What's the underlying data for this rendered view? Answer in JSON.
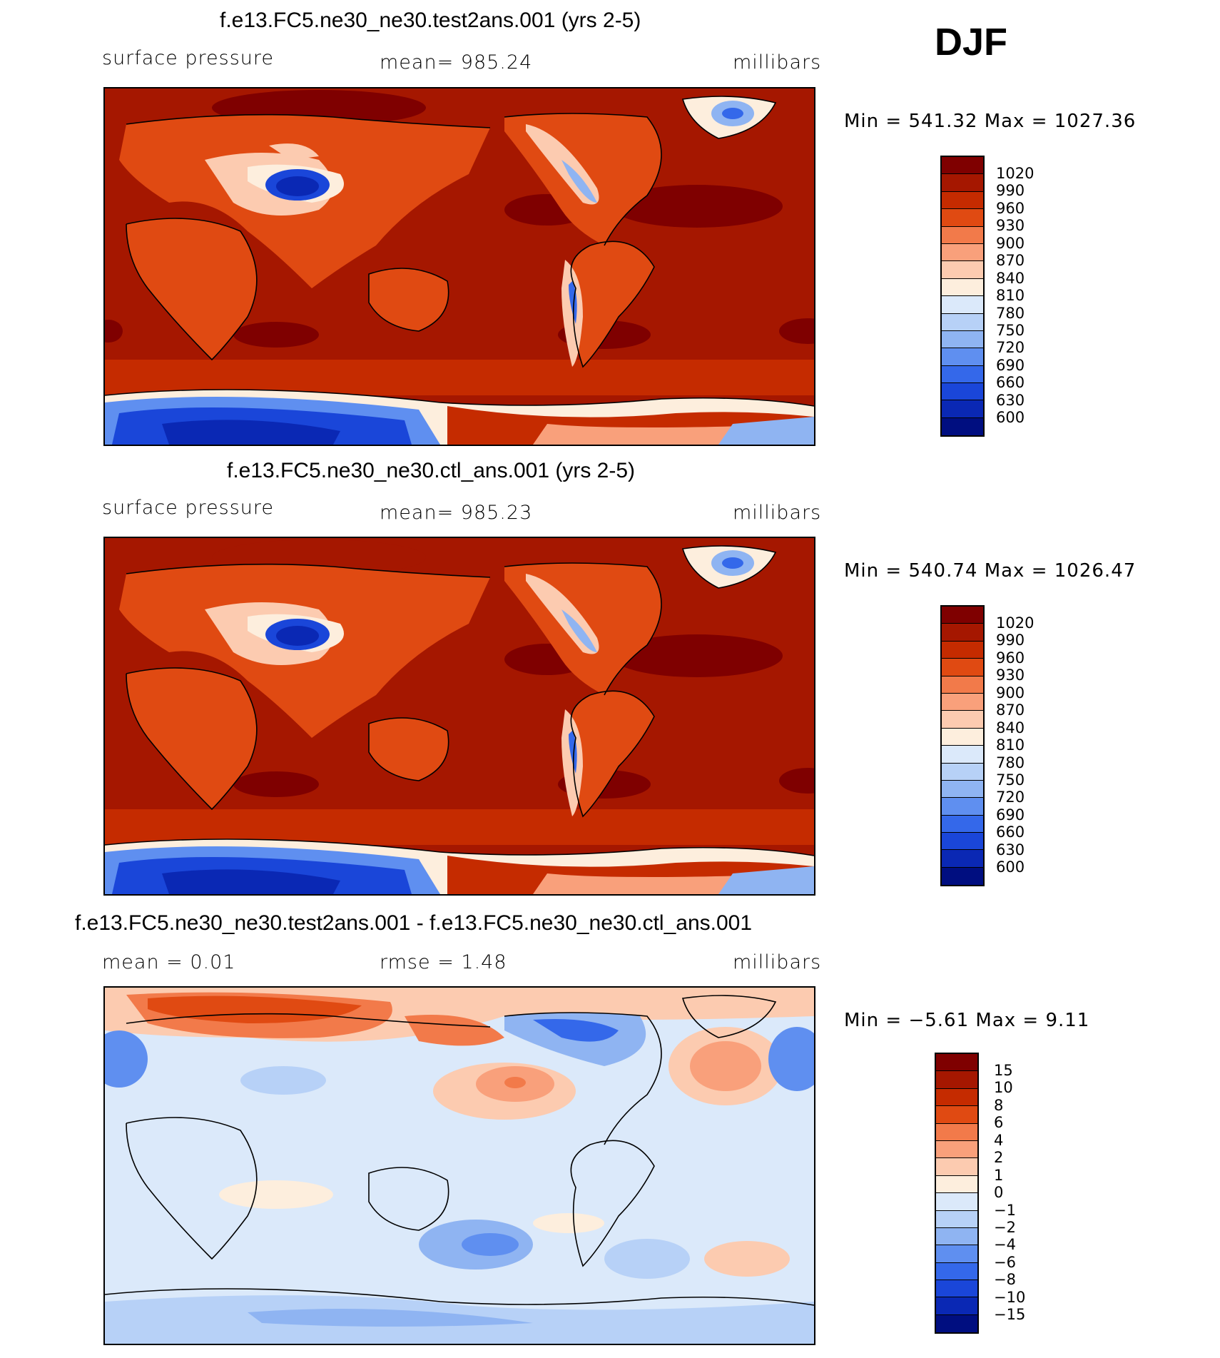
{
  "season": "DJF",
  "chart_data": [
    {
      "type": "heatmap",
      "title": "f.e13.FC5.ne30_ne30.test2ans.001 (yrs 2-5)",
      "variable": "surface pressure",
      "mean_label": "mean=  985.24",
      "units": "millibars",
      "minmax": "Min  =  541.32  Max  =  1027.36",
      "min": 541.32,
      "max": 1027.36,
      "mean": 985.24,
      "colorbar_levels": [
        "1020",
        "990",
        "960",
        "930",
        "900",
        "870",
        "840",
        "810",
        "780",
        "750",
        "720",
        "690",
        "660",
        "630",
        "600"
      ],
      "colors": [
        "#7f0000",
        "#a51700",
        "#c52b00",
        "#e04a12",
        "#f27a4a",
        "#f9a07b",
        "#fccbb0",
        "#fdeedd",
        "#dbe9fa",
        "#b7d1f7",
        "#8fb4f2",
        "#5f8ff0",
        "#3468ea",
        "#1a46d9",
        "#0a28b4",
        "#000e80"
      ]
    },
    {
      "type": "heatmap",
      "title": "f.e13.FC5.ne30_ne30.ctl_ans.001 (yrs 2-5)",
      "variable": "surface pressure",
      "mean_label": "mean=  985.23",
      "units": "millibars",
      "minmax": "Min  =  540.74  Max  =  1026.47",
      "min": 540.74,
      "max": 1026.47,
      "mean": 985.23,
      "colorbar_levels": [
        "1020",
        "990",
        "960",
        "930",
        "900",
        "870",
        "840",
        "810",
        "780",
        "750",
        "720",
        "690",
        "660",
        "630",
        "600"
      ],
      "colors": [
        "#7f0000",
        "#a51700",
        "#c52b00",
        "#e04a12",
        "#f27a4a",
        "#f9a07b",
        "#fccbb0",
        "#fdeedd",
        "#dbe9fa",
        "#b7d1f7",
        "#8fb4f2",
        "#5f8ff0",
        "#3468ea",
        "#1a46d9",
        "#0a28b4",
        "#000e80"
      ]
    },
    {
      "type": "heatmap",
      "title": "f.e13.FC5.ne30_ne30.test2ans.001 - f.e13.FC5.ne30_ne30.ctl_ans.001",
      "mean_label": "mean  =     0.01",
      "rmse_label": "rmse  =     1.48",
      "units": "millibars",
      "minmax": "Min  =   −5.61  Max  =     9.11",
      "min": -5.61,
      "max": 9.11,
      "mean": 0.01,
      "rmse": 1.48,
      "colorbar_levels": [
        "15",
        "10",
        "8",
        "6",
        "4",
        "2",
        "1",
        "0",
        "−1",
        "−2",
        "−4",
        "−6",
        "−8",
        "−10",
        "−15"
      ],
      "colors": [
        "#7f0000",
        "#a51700",
        "#c52b00",
        "#e04a12",
        "#f27a4a",
        "#f9a07b",
        "#fccbb0",
        "#fdeedd",
        "#dbe9fa",
        "#b7d1f7",
        "#8fb4f2",
        "#5f8ff0",
        "#3468ea",
        "#1a46d9",
        "#0a28b4",
        "#000e80"
      ]
    }
  ]
}
